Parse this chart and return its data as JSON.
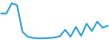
{
  "x": [
    0,
    1,
    2,
    3,
    4,
    5,
    6,
    7,
    8,
    9,
    10,
    11,
    12,
    13,
    14,
    15,
    16,
    17,
    18,
    19,
    20
  ],
  "y": [
    6.5,
    6.5,
    9.0,
    8.5,
    2.0,
    0.8,
    0.5,
    0.4,
    0.4,
    0.5,
    0.6,
    0.9,
    2.5,
    0.8,
    3.2,
    1.0,
    4.0,
    2.2,
    4.5,
    3.0,
    3.5
  ],
  "line_color": "#2e9fd4",
  "linewidth": 1.3,
  "background_color": "#ffffff",
  "ylim": [
    0,
    10
  ],
  "xlim": [
    -0.2,
    20.2
  ]
}
